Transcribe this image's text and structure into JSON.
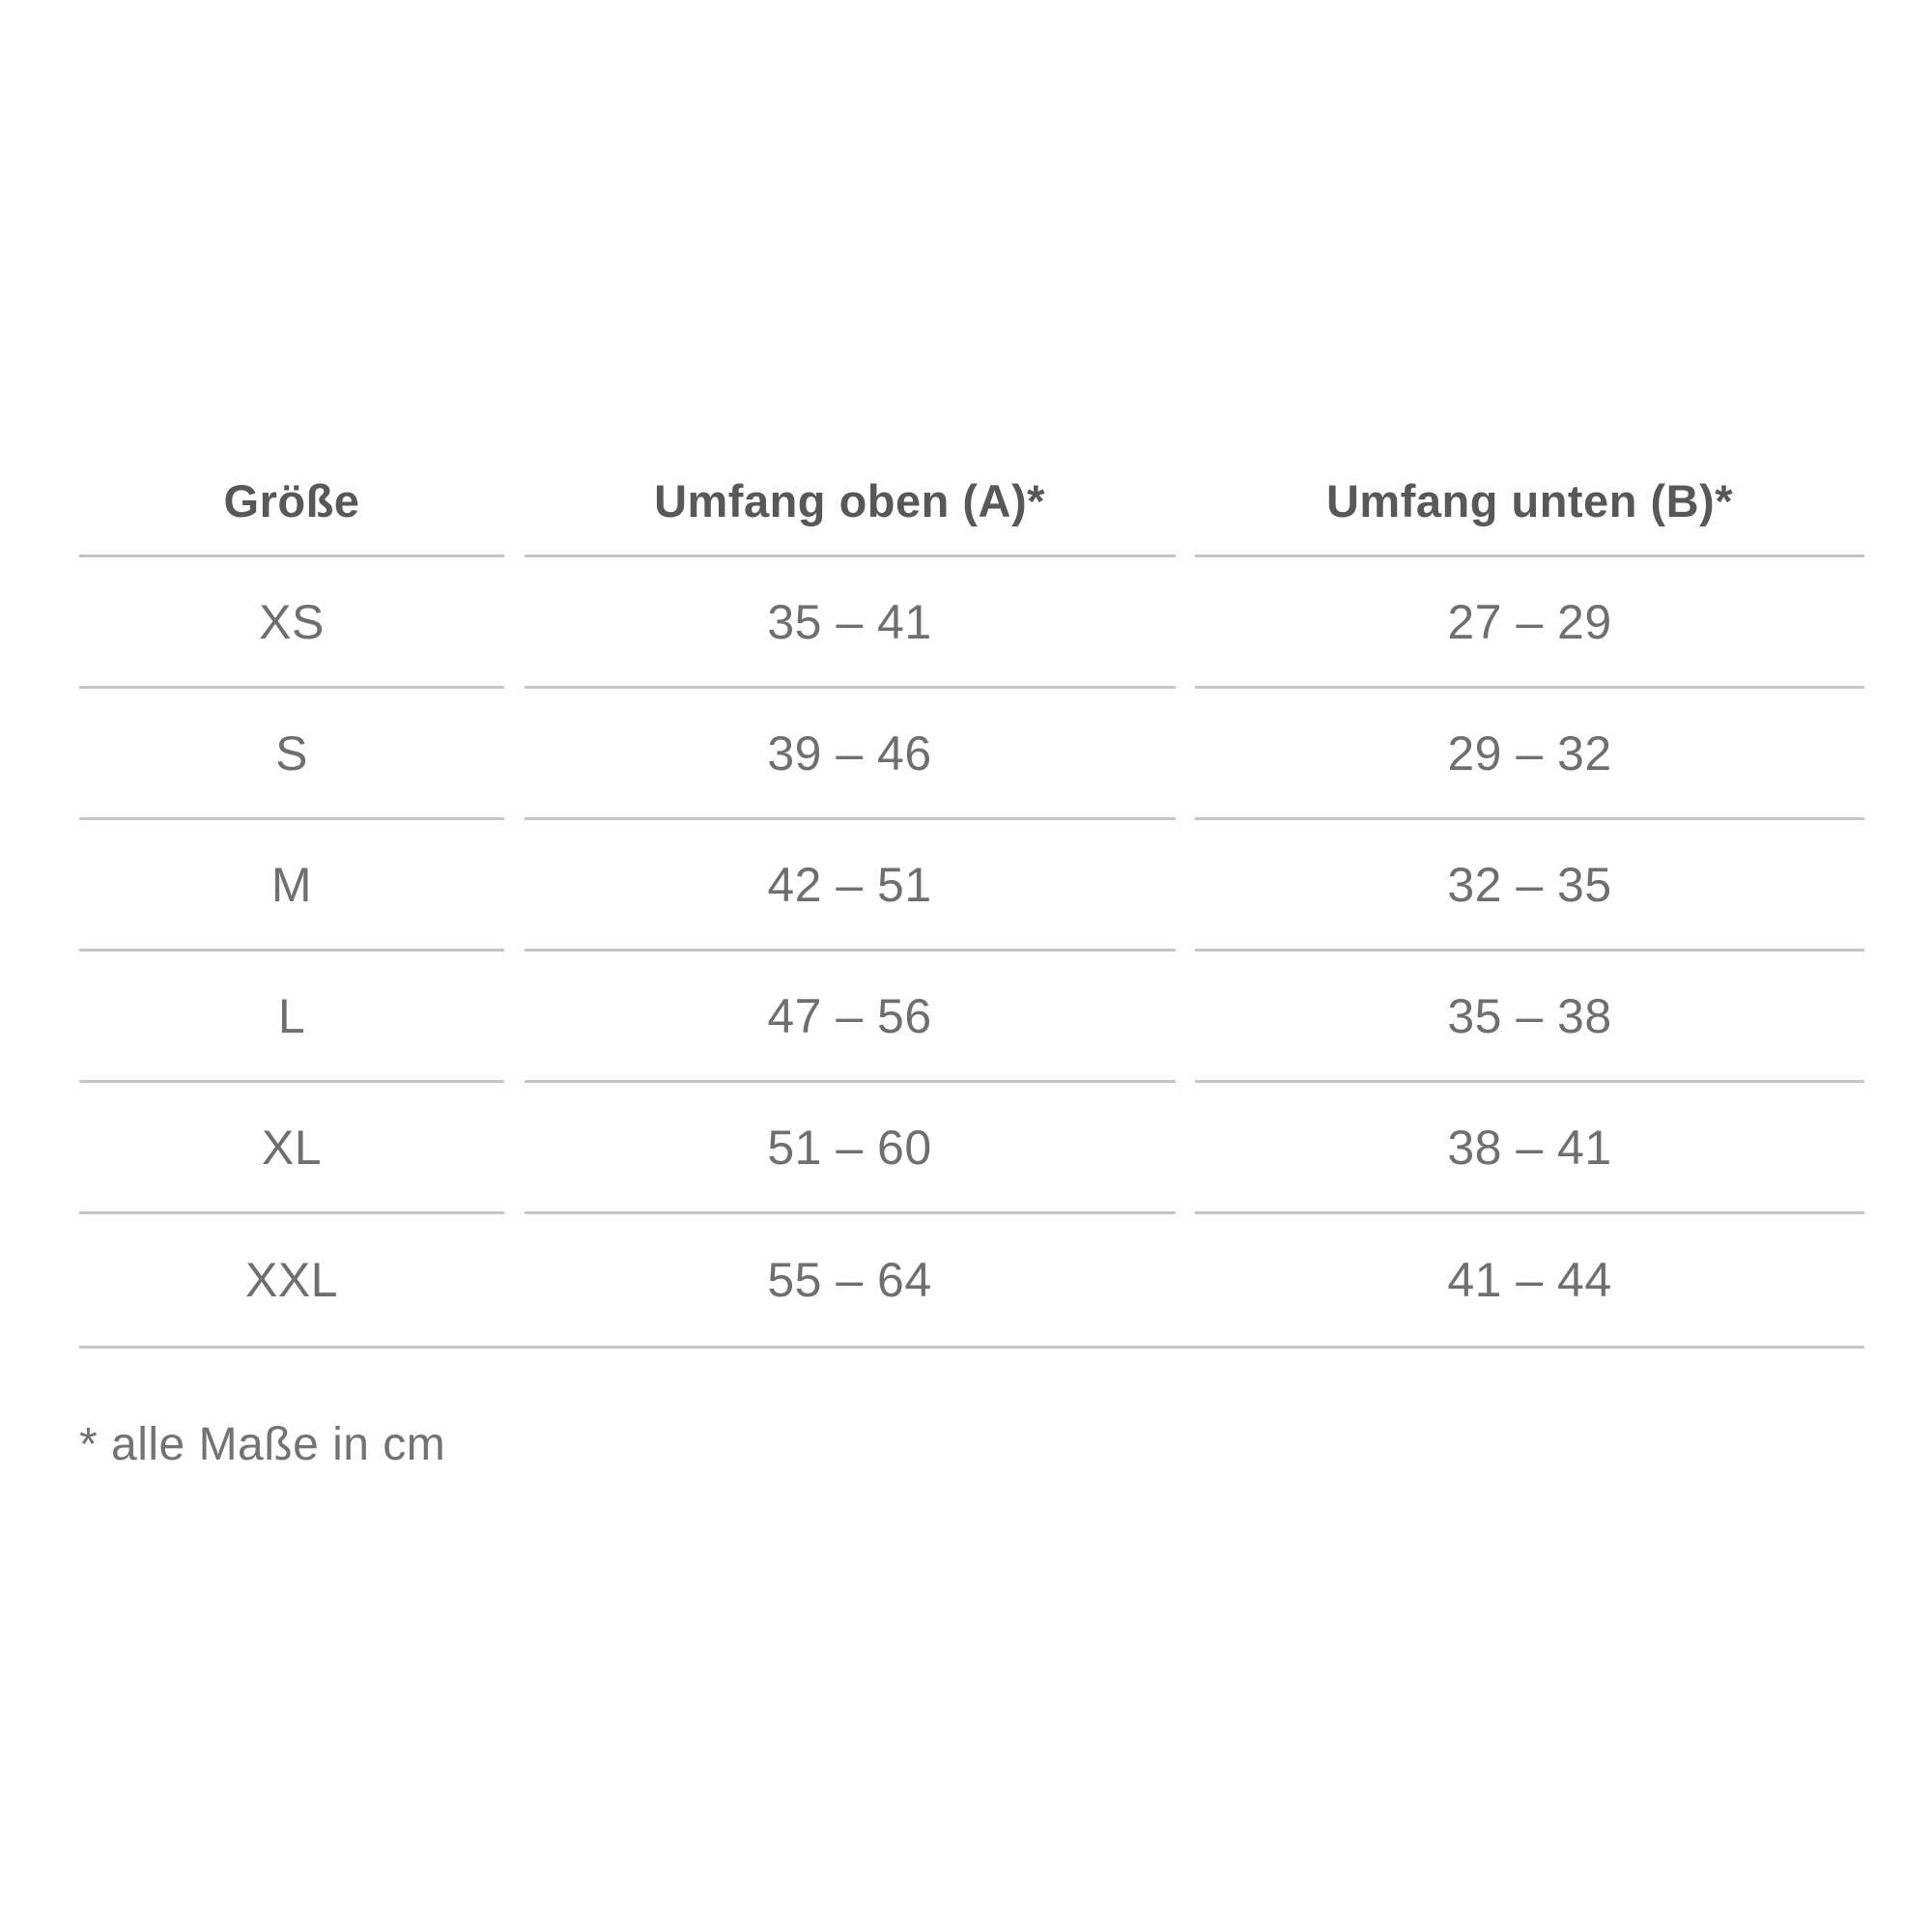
{
  "chart_data": {
    "type": "table",
    "columns": [
      "Größe",
      "Umfang oben (A)*",
      "Umfang unten (B)*"
    ],
    "rows": [
      [
        "XS",
        "35 – 41",
        "27 – 29"
      ],
      [
        "S",
        "39 – 46",
        "29 – 32"
      ],
      [
        "M",
        "42 – 51",
        "32 – 35"
      ],
      [
        "L",
        "47 – 56",
        "35 – 38"
      ],
      [
        "XL",
        "51 – 60",
        "38 – 41"
      ],
      [
        "XXL",
        "55 – 64",
        "41 – 44"
      ]
    ],
    "footnote": "* alle Maße in cm",
    "layout_hints": {
      "alignment": "center",
      "grid": "horizontal-rules-only",
      "unit": "cm"
    }
  },
  "colors": {
    "background": "#ffffff",
    "header_text": "#58585a",
    "cell_text": "#6f6f71",
    "footnote_text": "#737375",
    "rule_line": "#c6c6c6"
  }
}
